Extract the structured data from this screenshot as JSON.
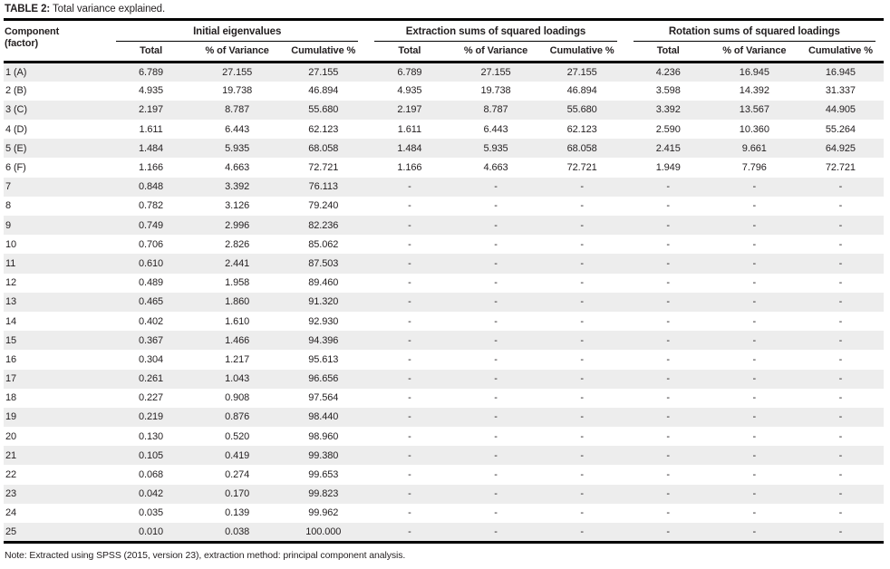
{
  "title": {
    "label": "TABLE 2:",
    "text": " Total variance explained."
  },
  "table": {
    "component_header_line1": "Component",
    "component_header_line2": "(factor)",
    "groups": [
      {
        "label": "Initial eigenvalues",
        "columns": [
          "Total",
          "% of Variance",
          "Cumulative %"
        ]
      },
      {
        "label": "Extraction sums of squared loadings",
        "columns": [
          "Total",
          "% of Variance",
          "Cumulative %"
        ]
      },
      {
        "label": "Rotation sums of squared loadings",
        "columns": [
          "Total",
          "% of Variance",
          "Cumulative %"
        ]
      }
    ],
    "rows": [
      {
        "component": "1 (A)",
        "initial": [
          "6.789",
          "27.155",
          "27.155"
        ],
        "extraction": [
          "6.789",
          "27.155",
          "27.155"
        ],
        "rotation": [
          "4.236",
          "16.945",
          "16.945"
        ]
      },
      {
        "component": "2 (B)",
        "initial": [
          "4.935",
          "19.738",
          "46.894"
        ],
        "extraction": [
          "4.935",
          "19.738",
          "46.894"
        ],
        "rotation": [
          "3.598",
          "14.392",
          "31.337"
        ]
      },
      {
        "component": "3 (C)",
        "initial": [
          "2.197",
          "8.787",
          "55.680"
        ],
        "extraction": [
          "2.197",
          "8.787",
          "55.680"
        ],
        "rotation": [
          "3.392",
          "13.567",
          "44.905"
        ]
      },
      {
        "component": "4 (D)",
        "initial": [
          "1.611",
          "6.443",
          "62.123"
        ],
        "extraction": [
          "1.611",
          "6.443",
          "62.123"
        ],
        "rotation": [
          "2.590",
          "10.360",
          "55.264"
        ]
      },
      {
        "component": "5 (E)",
        "initial": [
          "1.484",
          "5.935",
          "68.058"
        ],
        "extraction": [
          "1.484",
          "5.935",
          "68.058"
        ],
        "rotation": [
          "2.415",
          "9.661",
          "64.925"
        ]
      },
      {
        "component": "6 (F)",
        "initial": [
          "1.166",
          "4.663",
          "72.721"
        ],
        "extraction": [
          "1.166",
          "4.663",
          "72.721"
        ],
        "rotation": [
          "1.949",
          "7.796",
          "72.721"
        ]
      },
      {
        "component": "7",
        "initial": [
          "0.848",
          "3.392",
          "76.113"
        ],
        "extraction": [
          "-",
          "-",
          "-"
        ],
        "rotation": [
          "-",
          "-",
          "-"
        ]
      },
      {
        "component": "8",
        "initial": [
          "0.782",
          "3.126",
          "79.240"
        ],
        "extraction": [
          "-",
          "-",
          "-"
        ],
        "rotation": [
          "-",
          "-",
          "-"
        ]
      },
      {
        "component": "9",
        "initial": [
          "0.749",
          "2.996",
          "82.236"
        ],
        "extraction": [
          "-",
          "-",
          "-"
        ],
        "rotation": [
          "-",
          "-",
          "-"
        ]
      },
      {
        "component": "10",
        "initial": [
          "0.706",
          "2.826",
          "85.062"
        ],
        "extraction": [
          "-",
          "-",
          "-"
        ],
        "rotation": [
          "-",
          "-",
          "-"
        ]
      },
      {
        "component": "11",
        "initial": [
          "0.610",
          "2.441",
          "87.503"
        ],
        "extraction": [
          "-",
          "-",
          "-"
        ],
        "rotation": [
          "-",
          "-",
          "-"
        ]
      },
      {
        "component": "12",
        "initial": [
          "0.489",
          "1.958",
          "89.460"
        ],
        "extraction": [
          "-",
          "-",
          "-"
        ],
        "rotation": [
          "-",
          "-",
          "-"
        ]
      },
      {
        "component": "13",
        "initial": [
          "0.465",
          "1.860",
          "91.320"
        ],
        "extraction": [
          "-",
          "-",
          "-"
        ],
        "rotation": [
          "-",
          "-",
          "-"
        ]
      },
      {
        "component": "14",
        "initial": [
          "0.402",
          "1.610",
          "92.930"
        ],
        "extraction": [
          "-",
          "-",
          "-"
        ],
        "rotation": [
          "-",
          "-",
          "-"
        ]
      },
      {
        "component": "15",
        "initial": [
          "0.367",
          "1.466",
          "94.396"
        ],
        "extraction": [
          "-",
          "-",
          "-"
        ],
        "rotation": [
          "-",
          "-",
          "-"
        ]
      },
      {
        "component": "16",
        "initial": [
          "0.304",
          "1.217",
          "95.613"
        ],
        "extraction": [
          "-",
          "-",
          "-"
        ],
        "rotation": [
          "-",
          "-",
          "-"
        ]
      },
      {
        "component": "17",
        "initial": [
          "0.261",
          "1.043",
          "96.656"
        ],
        "extraction": [
          "-",
          "-",
          "-"
        ],
        "rotation": [
          "-",
          "-",
          "-"
        ]
      },
      {
        "component": "18",
        "initial": [
          "0.227",
          "0.908",
          "97.564"
        ],
        "extraction": [
          "-",
          "-",
          "-"
        ],
        "rotation": [
          "-",
          "-",
          "-"
        ]
      },
      {
        "component": "19",
        "initial": [
          "0.219",
          "0.876",
          "98.440"
        ],
        "extraction": [
          "-",
          "-",
          "-"
        ],
        "rotation": [
          "-",
          "-",
          "-"
        ]
      },
      {
        "component": "20",
        "initial": [
          "0.130",
          "0.520",
          "98.960"
        ],
        "extraction": [
          "-",
          "-",
          "-"
        ],
        "rotation": [
          "-",
          "-",
          "-"
        ]
      },
      {
        "component": "21",
        "initial": [
          "0.105",
          "0.419",
          "99.380"
        ],
        "extraction": [
          "-",
          "-",
          "-"
        ],
        "rotation": [
          "-",
          "-",
          "-"
        ]
      },
      {
        "component": "22",
        "initial": [
          "0.068",
          "0.274",
          "99.653"
        ],
        "extraction": [
          "-",
          "-",
          "-"
        ],
        "rotation": [
          "-",
          "-",
          "-"
        ]
      },
      {
        "component": "23",
        "initial": [
          "0.042",
          "0.170",
          "99.823"
        ],
        "extraction": [
          "-",
          "-",
          "-"
        ],
        "rotation": [
          "-",
          "-",
          "-"
        ]
      },
      {
        "component": "24",
        "initial": [
          "0.035",
          "0.139",
          "99.962"
        ],
        "extraction": [
          "-",
          "-",
          "-"
        ],
        "rotation": [
          "-",
          "-",
          "-"
        ]
      },
      {
        "component": "25",
        "initial": [
          "0.010",
          "0.038",
          "100.000"
        ],
        "extraction": [
          "-",
          "-",
          "-"
        ],
        "rotation": [
          "-",
          "-",
          "-"
        ]
      }
    ]
  },
  "note": "Note: Extracted using SPSS (2015, version 23), extraction method: principal component analysis.",
  "colors": {
    "row_shading": "#ededed",
    "rule": "#000000",
    "text": "#231f20"
  }
}
